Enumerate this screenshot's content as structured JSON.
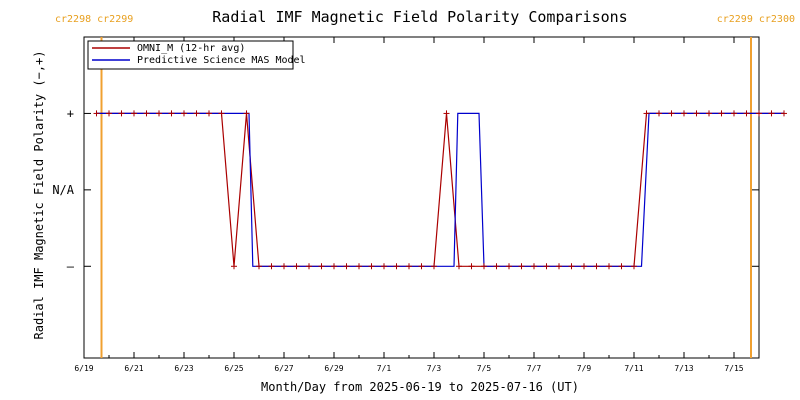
{
  "chart_data": {
    "type": "line",
    "title": "Radial IMF Magnetic Field Polarity Comparisons",
    "xlabel": "Month/Day from 2025-06-19 to 2025-07-16 (UT)",
    "ylabel": "Radial IMF Magnetic Field Polarity (−,+)",
    "x_range_days": [
      0.0,
      27.0
    ],
    "y_range": [
      -2.2,
      2.0
    ],
    "x_ticks": [
      {
        "day": 0,
        "label": "6/19"
      },
      {
        "day": 2,
        "label": "6/21"
      },
      {
        "day": 4,
        "label": "6/23"
      },
      {
        "day": 6,
        "label": "6/25"
      },
      {
        "day": 8,
        "label": "6/27"
      },
      {
        "day": 10,
        "label": "6/29"
      },
      {
        "day": 12,
        "label": "7/1"
      },
      {
        "day": 14,
        "label": "7/3"
      },
      {
        "day": 16,
        "label": "7/5"
      },
      {
        "day": 18,
        "label": "7/7"
      },
      {
        "day": 20,
        "label": "7/9"
      },
      {
        "day": 22,
        "label": "7/11"
      },
      {
        "day": 24,
        "label": "7/13"
      },
      {
        "day": 26,
        "label": "7/15"
      }
    ],
    "y_ticks": [
      {
        "value": 1,
        "label": "+"
      },
      {
        "value": 0,
        "label": "N/A"
      },
      {
        "value": -1,
        "label": "–"
      }
    ],
    "carrington_markers": [
      {
        "day": 0.7,
        "label": "cr2298 cr2299"
      },
      {
        "day": 27.6,
        "label": "cr2299 cr2300"
      }
    ],
    "legend": {
      "placement": "top-left",
      "entries": [
        {
          "label": "OMNI_M (12-hr avg)",
          "color": "#aa0000"
        },
        {
          "label": "Predictive Science MAS Model",
          "color": "#0000cc"
        }
      ]
    },
    "series": [
      {
        "name": "OMNI_M (12-hr avg)",
        "color": "#aa0000",
        "x": [
          0.5,
          1.0,
          1.5,
          2.0,
          2.5,
          3.0,
          3.5,
          4.0,
          4.5,
          5.0,
          5.5,
          6.0,
          6.5,
          7.0,
          7.5,
          8.0,
          8.5,
          9.0,
          9.5,
          10.0,
          10.5,
          11.0,
          11.5,
          12.0,
          12.5,
          13.0,
          13.5,
          14.0,
          14.5,
          15.0,
          15.5,
          16.0,
          16.5,
          17.0,
          17.5,
          18.0,
          18.5,
          19.0,
          19.5,
          20.0,
          20.5,
          21.0,
          21.5,
          22.0,
          22.5,
          23.0,
          23.5,
          24.0,
          24.5,
          25.0,
          25.5,
          26.0,
          26.5,
          27.0,
          27.5,
          28.0
        ],
        "y": [
          1,
          1,
          1,
          1,
          1,
          1,
          1,
          1,
          1,
          1,
          1,
          -1,
          1,
          -1,
          -1,
          -1,
          -1,
          -1,
          -1,
          -1,
          -1,
          -1,
          -1,
          -1,
          -1,
          -1,
          -1,
          -1,
          1,
          -1,
          -1,
          -1,
          -1,
          -1,
          -1,
          -1,
          -1,
          -1,
          -1,
          -1,
          -1,
          -1,
          -1,
          -1,
          1,
          1,
          1,
          1,
          1,
          1,
          1,
          1,
          1,
          1,
          1,
          1
        ]
      },
      {
        "name": "Predictive Science MAS Model",
        "color": "#0000cc",
        "x": [
          0.5,
          6.6,
          6.75,
          7.0,
          14.8,
          14.95,
          15.8,
          16.0,
          22.3,
          22.6,
          28.0
        ],
        "y": [
          1,
          1,
          -1,
          -1,
          -1,
          1,
          1,
          -1,
          -1,
          1,
          1
        ]
      }
    ]
  }
}
